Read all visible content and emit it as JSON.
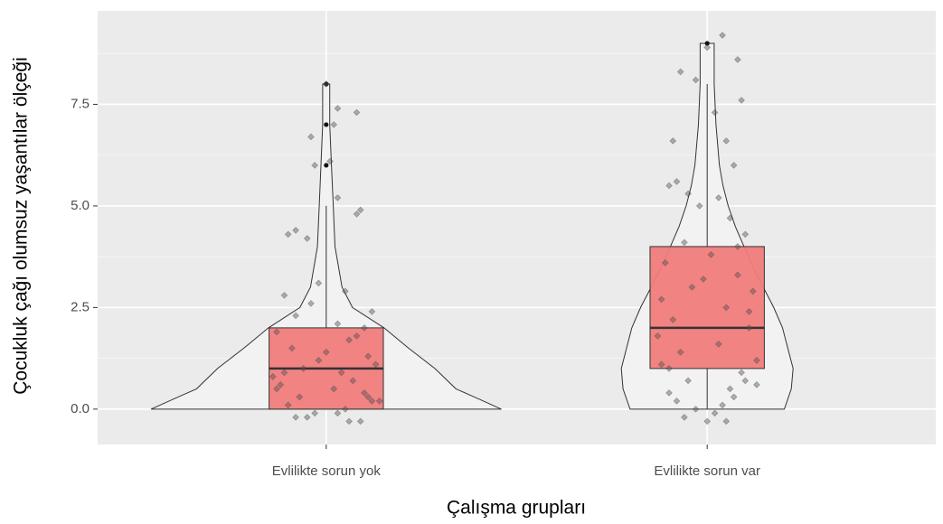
{
  "chart_data": {
    "type": "violin",
    "x_label": "Çalışma grupları",
    "y_label": "Çocukluk çağı olumsuz yaşantılar ölçeği",
    "categories": [
      "Evlilikte sorun yok",
      "Evlilikte sorun var"
    ],
    "ylim": [
      -0.87,
      9.8
    ],
    "yticks": [
      {
        "value": 0,
        "label": "0.0"
      },
      2.5,
      {
        "value": 5,
        "label": "5.0"
      },
      7.5
    ],
    "grid": true,
    "box_color": "#f07c7c",
    "violin_color": "#f2f2f2",
    "groups": [
      {
        "violin": {
          "y": [
            0,
            0.25,
            0.5,
            1,
            1.5,
            2,
            2.5,
            3,
            3.5,
            4,
            5,
            6,
            7,
            8
          ],
          "density": [
            1.0,
            0.87,
            0.74,
            0.62,
            0.47,
            0.33,
            0.15,
            0.09,
            0.07,
            0.05,
            0.04,
            0.03,
            0.02,
            0.02
          ]
        },
        "box": {
          "lower_whisker": 0,
          "q1": 0,
          "median": 1,
          "q3": 2,
          "upper_whisker": 5
        },
        "outliers": [
          6,
          7,
          8
        ],
        "jitter": {
          "x": [
            0,
            0.02,
            -0.03,
            0.08,
            0.03,
            -0.04,
            0.01,
            0.03,
            0.09,
            0.08,
            -0.08,
            -0.1,
            -0.05,
            -0.02,
            0.05,
            -0.11,
            -0.04,
            0.12,
            -0.08,
            0.03,
            0.1,
            -0.13,
            0.06,
            -0.09,
            0.11,
            -0.02,
            0.13,
            -0.06,
            0.04,
            -0.14,
            0.07,
            -0.12,
            0.02,
            0.1,
            -0.07,
            0.14,
            -0.1,
            0.05,
            -0.03,
            -0.08,
            0.06,
            0.09,
            -0.05,
            0.12,
            -0.13,
            0.0,
            0.08,
            -0.11,
            0.11,
            0.03
          ],
          "y": [
            8,
            7,
            6,
            7.3,
            7.4,
            6.7,
            6.1,
            5.2,
            4.9,
            4.8,
            4.4,
            4.3,
            4.2,
            3.1,
            2.9,
            2.8,
            2.6,
            2.4,
            2.3,
            2.1,
            2.0,
            1.9,
            1.7,
            1.5,
            1.3,
            1.2,
            1.1,
            1.0,
            0.9,
            0.8,
            0.7,
            0.6,
            0.5,
            0.4,
            0.3,
            0.2,
            0.1,
            0.0,
            -0.1,
            -0.2,
            -0.3,
            -0.3,
            -0.2,
            0.2,
            0.5,
            1.4,
            1.8,
            0.9,
            0.3,
            -0.1
          ]
        }
      },
      {
        "violin": {
          "y": [
            0,
            0.5,
            1,
            1.5,
            2,
            2.5,
            3,
            3.5,
            4,
            4.5,
            5,
            5.5,
            6,
            7,
            8,
            9
          ],
          "density": [
            0.44,
            0.48,
            0.49,
            0.46,
            0.43,
            0.38,
            0.32,
            0.26,
            0.21,
            0.16,
            0.12,
            0.09,
            0.07,
            0.05,
            0.04,
            0.04
          ]
        },
        "box": {
          "lower_whisker": 0,
          "q1": 1,
          "median": 2,
          "q3": 4,
          "upper_whisker": 8
        },
        "outliers": [
          9
        ],
        "jitter": {
          "x": [
            0.04,
            0.0,
            0.08,
            -0.07,
            -0.03,
            0.09,
            0.02,
            -0.09,
            0.05,
            0.07,
            -0.08,
            -0.1,
            -0.05,
            0.03,
            -0.02,
            0.06,
            0.1,
            -0.06,
            0.01,
            -0.11,
            0.08,
            -0.04,
            0.12,
            -0.12,
            0.05,
            -0.09,
            0.11,
            -0.13,
            0.03,
            -0.07,
            0.13,
            -0.1,
            0.09,
            -0.05,
            0.06,
            -0.1,
            0.07,
            -0.08,
            0.04,
            -0.03,
            0.02,
            -0.06,
            0.0,
            0.05,
            0.1,
            -0.12,
            0.11,
            -0.01,
            0.08,
            0.13
          ],
          "y": [
            9.2,
            8.9,
            8.6,
            8.3,
            8.1,
            7.6,
            7.3,
            6.6,
            6.6,
            6.0,
            5.6,
            5.5,
            5.3,
            5.2,
            5.0,
            4.7,
            4.3,
            4.1,
            3.8,
            3.6,
            3.3,
            3.0,
            2.9,
            2.7,
            2.5,
            2.2,
            2.0,
            1.8,
            1.6,
            1.4,
            1.2,
            1.0,
            0.9,
            0.7,
            0.5,
            0.4,
            0.3,
            0.2,
            0.1,
            0.0,
            -0.1,
            -0.2,
            -0.3,
            -0.3,
            0.7,
            1.1,
            2.4,
            3.2,
            4.0,
            0.6
          ]
        }
      }
    ]
  }
}
